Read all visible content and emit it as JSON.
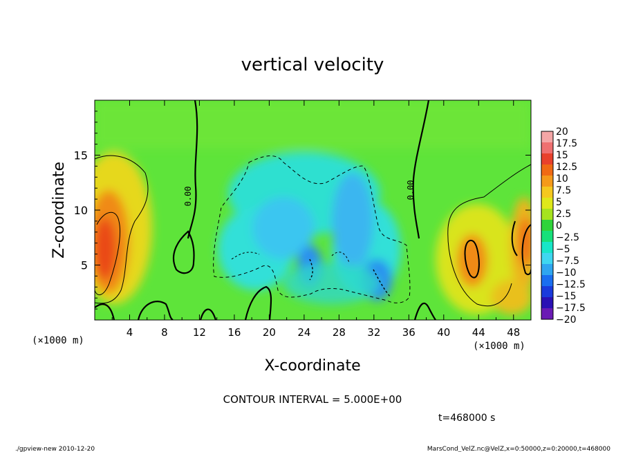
{
  "chart_data": {
    "type": "heatmap",
    "title": "vertical velocity",
    "xlabel": "X-coordinate",
    "ylabel": "Z-coordinate",
    "x_unit_left": "(×1000 m)",
    "x_unit_right": "(×1000 m)",
    "xlim": [
      0,
      50
    ],
    "ylim": [
      0,
      20
    ],
    "x_ticks": [
      "4",
      "8",
      "12",
      "16",
      "20",
      "24",
      "28",
      "32",
      "36",
      "40",
      "44",
      "48"
    ],
    "y_ticks": [
      "5",
      "10",
      "15"
    ],
    "colorbar": {
      "levels": [
        "20",
        "17.5",
        "15",
        "12.5",
        "10",
        "7.5",
        "5",
        "2.5",
        "0",
        "−2.5",
        "−5",
        "−7.5",
        "−10",
        "−12.5",
        "−15",
        "−17.5",
        "−20"
      ],
      "colors": [
        "#f4a6a6",
        "#ef7070",
        "#e8412c",
        "#f06a14",
        "#f59a1a",
        "#f5c81f",
        "#dfe81a",
        "#a6e31e",
        "#2fd43a",
        "#16e07a",
        "#18e6c8",
        "#3fd7f0",
        "#2fa6f0",
        "#1a6ef0",
        "#1a3adc",
        "#2a10b4",
        "#6a1ab4"
      ]
    },
    "contour_labels": [
      "0.00",
      "0.00"
    ],
    "contour_interval": "CONTOUR INTERVAL = 5.000E+00",
    "time_label": "t=468000 s",
    "footer_left": "./gpview-new  2010-12-20",
    "footer_right": "MarsCond_VelZ.nc@VelZ,x=0:50000,z=0:20000,t=468000"
  }
}
